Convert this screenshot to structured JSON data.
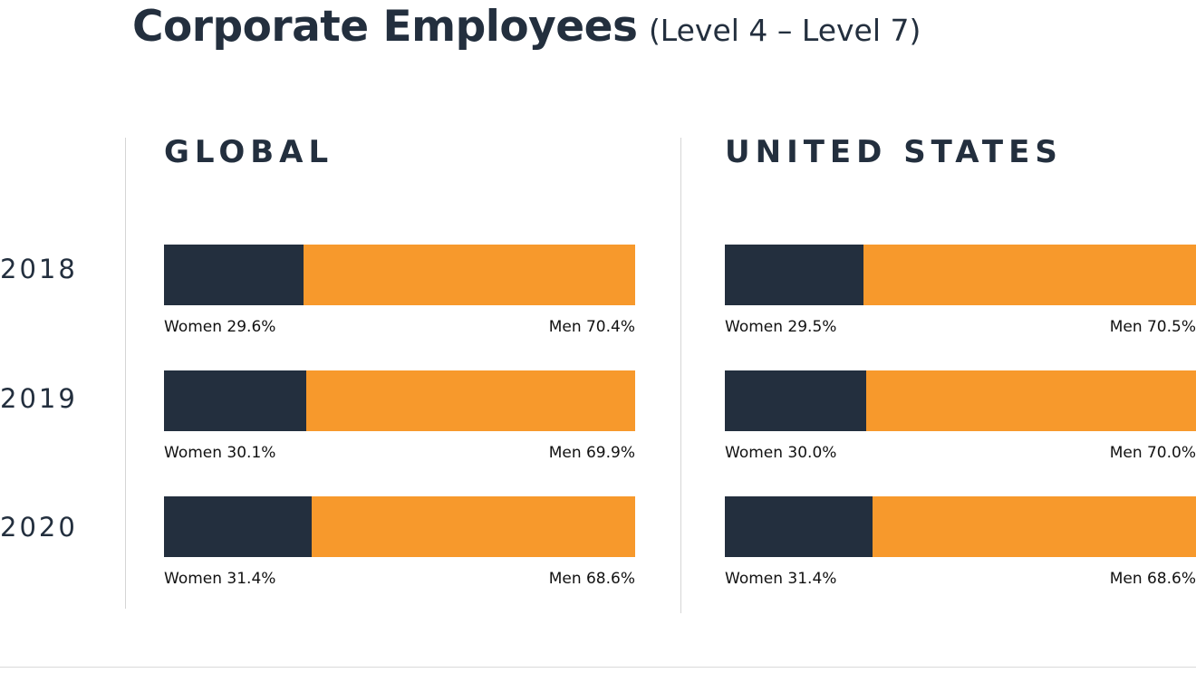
{
  "title": "Corporate Employees",
  "subtitle": "(Level 4 – Level 7)",
  "colors": {
    "women": "#232f3e",
    "men": "#f7992c",
    "text": "#232f3e"
  },
  "chart_data": [
    {
      "type": "bar",
      "stacked": true,
      "orientation": "horizontal",
      "title": "GLOBAL",
      "categories": [
        "2018",
        "2019",
        "2020"
      ],
      "series": [
        {
          "name": "Women",
          "values": [
            29.6,
            30.1,
            31.4
          ],
          "labels": [
            "Women 29.6%",
            "Women 30.1%",
            "Women 31.4%"
          ]
        },
        {
          "name": "Men",
          "values": [
            70.4,
            69.9,
            68.6
          ],
          "labels": [
            "Men 70.4%",
            "Men 69.9%",
            "Men 68.6%"
          ]
        }
      ],
      "xlim": [
        0,
        100
      ],
      "grid": false
    },
    {
      "type": "bar",
      "stacked": true,
      "orientation": "horizontal",
      "title": "UNITED STATES",
      "categories": [
        "2018",
        "2019",
        "2020"
      ],
      "series": [
        {
          "name": "Women",
          "values": [
            29.5,
            30.0,
            31.4
          ],
          "labels": [
            "Women 29.5%",
            "Women 30.0%",
            "Women 31.4%"
          ]
        },
        {
          "name": "Men",
          "values": [
            70.5,
            70.0,
            68.6
          ],
          "labels": [
            "Men 70.5%",
            "Men 70.0%",
            "Men 68.6%"
          ]
        }
      ],
      "xlim": [
        0,
        100
      ],
      "grid": false
    }
  ]
}
